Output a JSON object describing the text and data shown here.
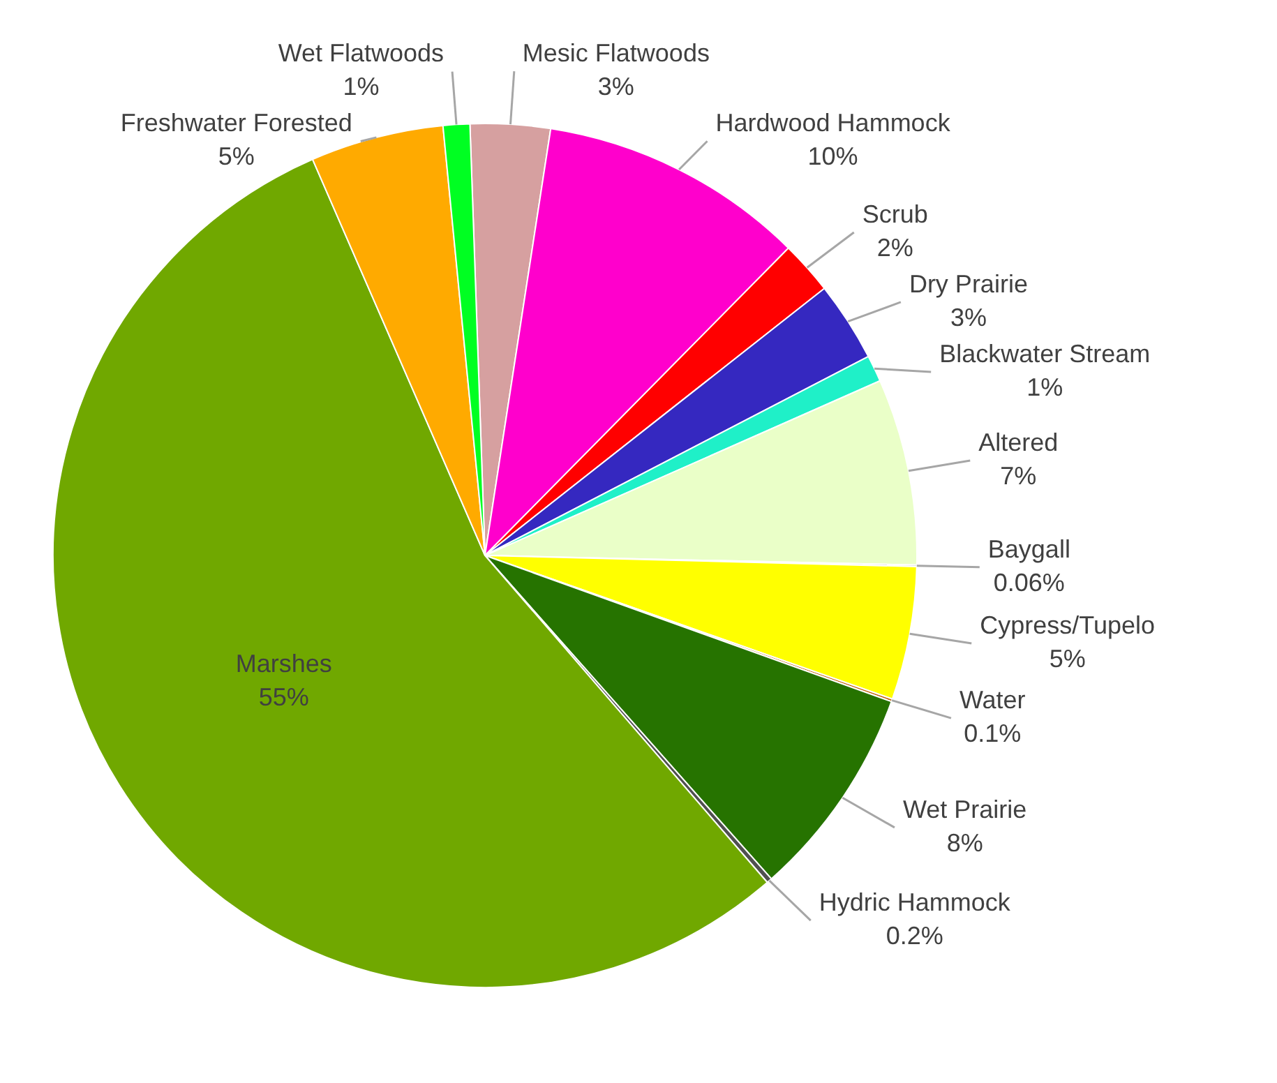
{
  "chart_data": {
    "type": "pie",
    "categories": [
      "Mesic Flatwoods",
      "Hardwood Hammock",
      "Scrub",
      "Dry Prairie",
      "Blackwater Stream",
      "Altered",
      "Baygall",
      "Cypress/Tupelo",
      "Water",
      "Wet Prairie",
      "Hydric Hammock",
      "Marshes",
      "Freshwater Forested",
      "Wet Flatwoods"
    ],
    "values": [
      3,
      10,
      2,
      3,
      1,
      7,
      0.06,
      5,
      0.1,
      8,
      0.2,
      55,
      5,
      1
    ],
    "value_labels": [
      "3%",
      "10%",
      "2%",
      "3%",
      "1%",
      "7%",
      "0.06%",
      "5%",
      "0.1%",
      "8%",
      "0.2%",
      "55%",
      "5%",
      "1%"
    ],
    "colors": [
      "#d6a0a0",
      "#ff00cc",
      "#ff0000",
      "#3528c0",
      "#1ff0c8",
      "#eaffc8",
      "#8a8a8a",
      "#ffff00",
      "#c06000",
      "#267300",
      "#505050",
      "#70a800",
      "#ffaa00",
      "#00ff22"
    ],
    "legend": false
  }
}
